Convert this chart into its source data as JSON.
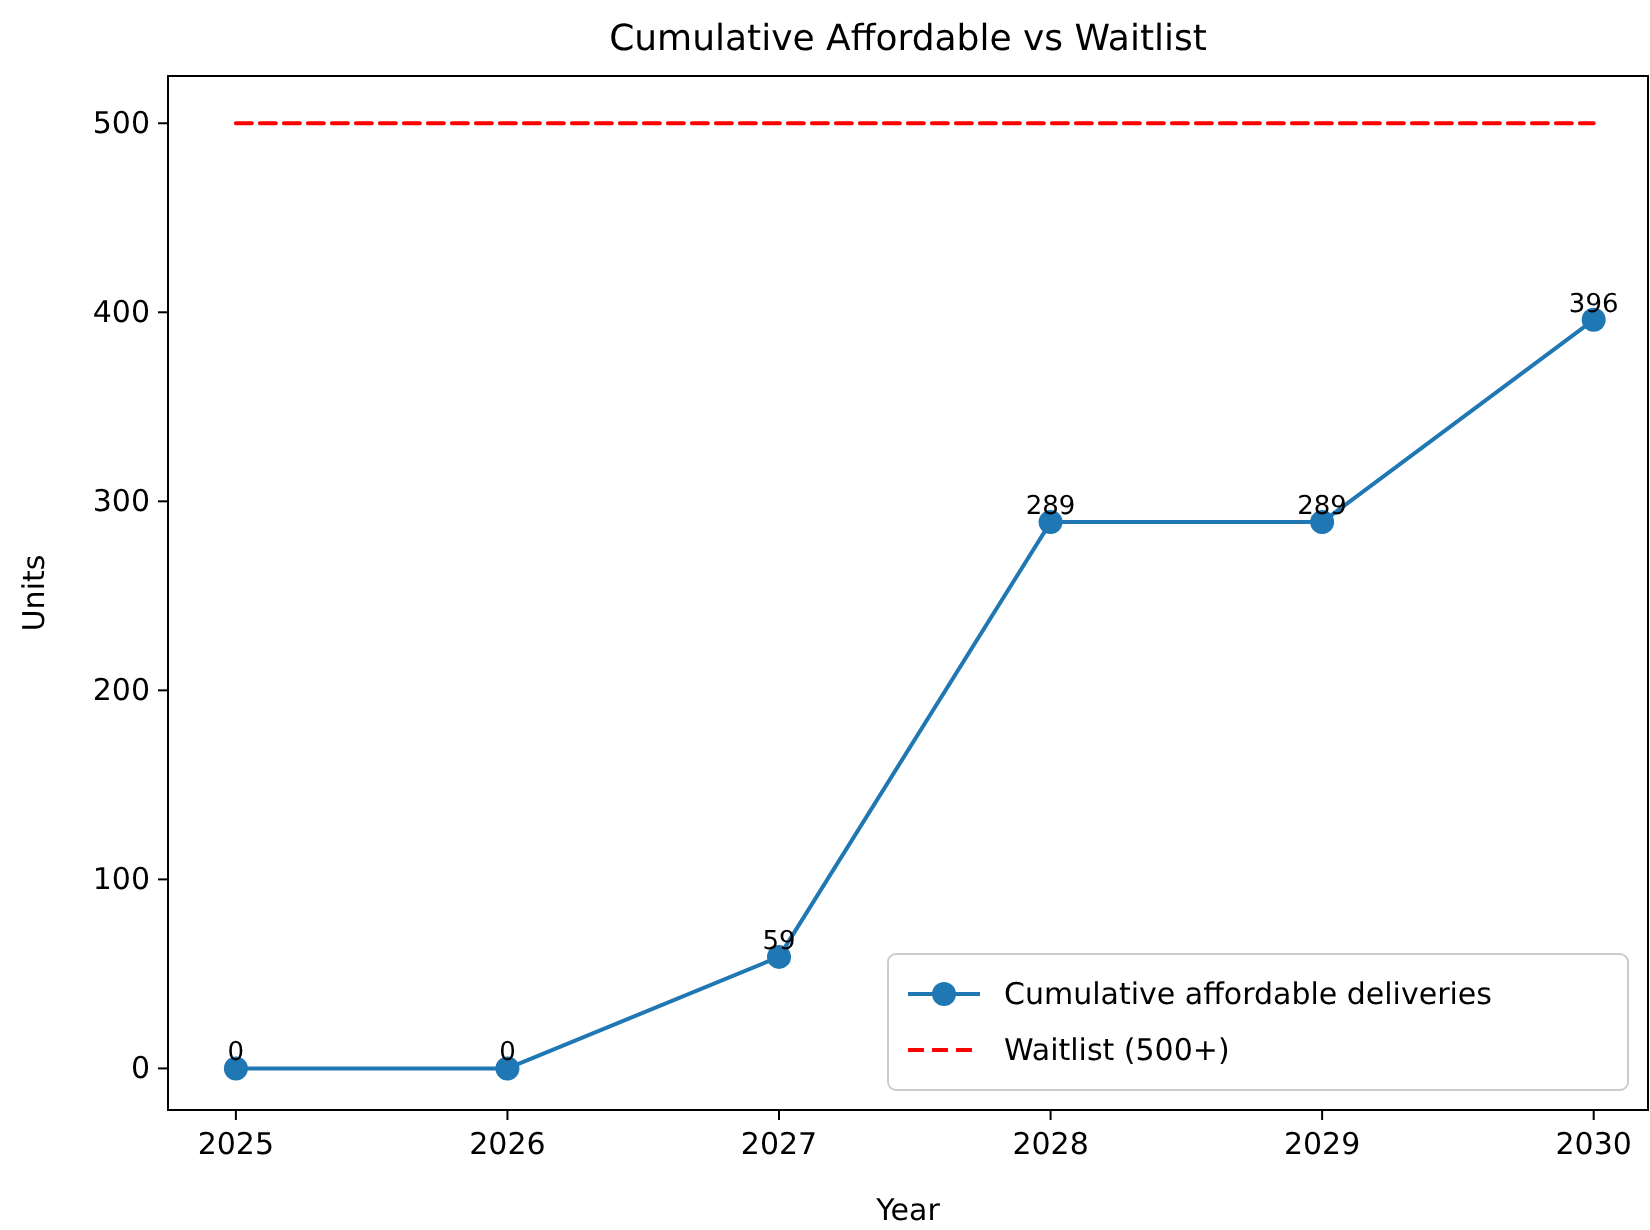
{
  "chart_data": {
    "type": "line",
    "title": "Cumulative Affordable vs Waitlist",
    "xlabel": "Year",
    "ylabel": "Units",
    "x": [
      2025,
      2026,
      2027,
      2028,
      2029,
      2030
    ],
    "series": [
      {
        "name": "Cumulative affordable deliveries",
        "color": "#1f77b4",
        "values": [
          0,
          0,
          59,
          289,
          289,
          396
        ],
        "marker": "circle",
        "line_style": "solid",
        "data_labels": true
      },
      {
        "name": "Waitlist (500+)",
        "color": "#ff0000",
        "values": [
          500,
          500,
          500,
          500,
          500,
          500
        ],
        "marker": "none",
        "line_style": "dashed"
      }
    ],
    "xlim": [
      2024.75,
      2030.2
    ],
    "ylim": [
      -22,
      525
    ],
    "xticks": [
      2025,
      2026,
      2027,
      2028,
      2029,
      2030
    ],
    "yticks": [
      0,
      100,
      200,
      300,
      400,
      500
    ],
    "grid": false,
    "legend": "bottom right"
  }
}
